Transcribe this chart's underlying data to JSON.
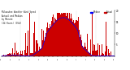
{
  "title": "Milwaukee Weather Wind Speed  Actual and Median  by Minute  (24 Hours) (Old)",
  "legend_actual": "Actual",
  "legend_median": "Median",
  "actual_color": "#cc0000",
  "median_color": "#0000ff",
  "background_color": "#ffffff",
  "xlim": [
    0,
    1440
  ],
  "ylim": [
    0,
    20
  ],
  "ytick_vals": [
    5,
    10,
    15,
    20
  ],
  "n_points": 1440,
  "seed": 7,
  "vgrid_positions": [
    240,
    480,
    720,
    960,
    1200
  ]
}
